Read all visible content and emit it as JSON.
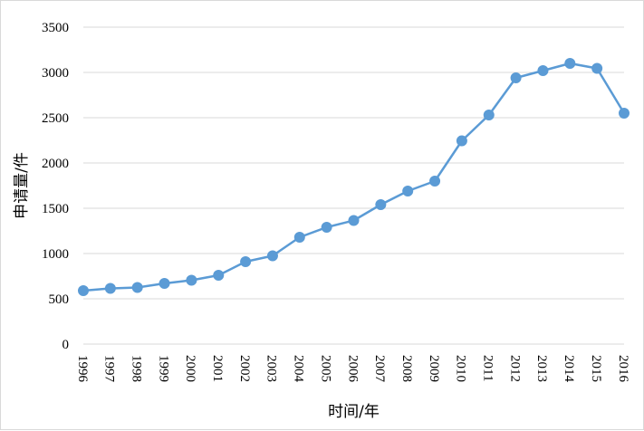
{
  "chart_data": {
    "type": "line",
    "title": "",
    "xlabel": "时间/年",
    "ylabel": "申请量/件",
    "ylim": [
      0,
      3500
    ],
    "yticks": [
      0,
      500,
      1000,
      1500,
      2000,
      2500,
      3000,
      3500
    ],
    "grid": true,
    "legend": "none",
    "categories": [
      "1996",
      "1997",
      "1998",
      "1999",
      "2000",
      "2001",
      "2002",
      "2003",
      "2004",
      "2005",
      "2006",
      "2007",
      "2008",
      "2009",
      "2010",
      "2011",
      "2012",
      "2013",
      "2014",
      "2015",
      "2016"
    ],
    "series": [
      {
        "values": [
          590,
          615,
          625,
          670,
          705,
          760,
          910,
          975,
          1180,
          1290,
          1365,
          1540,
          1690,
          1800,
          2245,
          2530,
          2940,
          3020,
          3100,
          3045,
          2550
        ],
        "color": "#5b9bd5"
      }
    ]
  }
}
